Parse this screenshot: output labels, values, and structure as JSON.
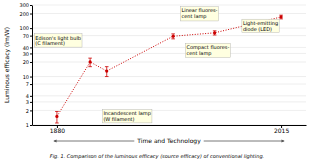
{
  "chart_data": {
    "type": "line",
    "y_label": "Luminous efficacy (lm/W)",
    "x_label": "Time and Technology",
    "caption": "Fig. 1. Comparison of the luminous efficacy (source efficacy) of conventional lighting.",
    "x": [
      1880,
      1900,
      1910,
      1950,
      1975,
      2015
    ],
    "values": [
      1.5,
      20,
      13,
      68,
      80,
      170
    ],
    "errors": [
      0.4,
      4,
      3,
      8,
      8,
      15
    ],
    "color": "#cc0000",
    "line_style": "dotted",
    "marker": "o",
    "log": "y",
    "grid": true,
    "xlim": [
      1865,
      2030
    ],
    "xticks": [
      1880,
      2015
    ],
    "ylim": [
      1,
      300
    ],
    "yticks": [
      1,
      2,
      3,
      4,
      7,
      10,
      20,
      30,
      40,
      70,
      100,
      200,
      300
    ],
    "annotations": [
      {
        "text": "Edison's light bulb\n(C filament)",
        "x": 1867,
        "y": 55
      },
      {
        "text": "Linear fluores-\ncent lamp",
        "x": 1955,
        "y": 200
      },
      {
        "text": "Compact fluores-\ncent lamp",
        "x": 1958,
        "y": 35
      },
      {
        "text": "Incandescent lamp\n(W filament)",
        "x": 1908,
        "y": 1.5
      },
      {
        "text": "Light-emitting\ndiode (LED)",
        "x": 1992,
        "y": 110
      }
    ]
  }
}
